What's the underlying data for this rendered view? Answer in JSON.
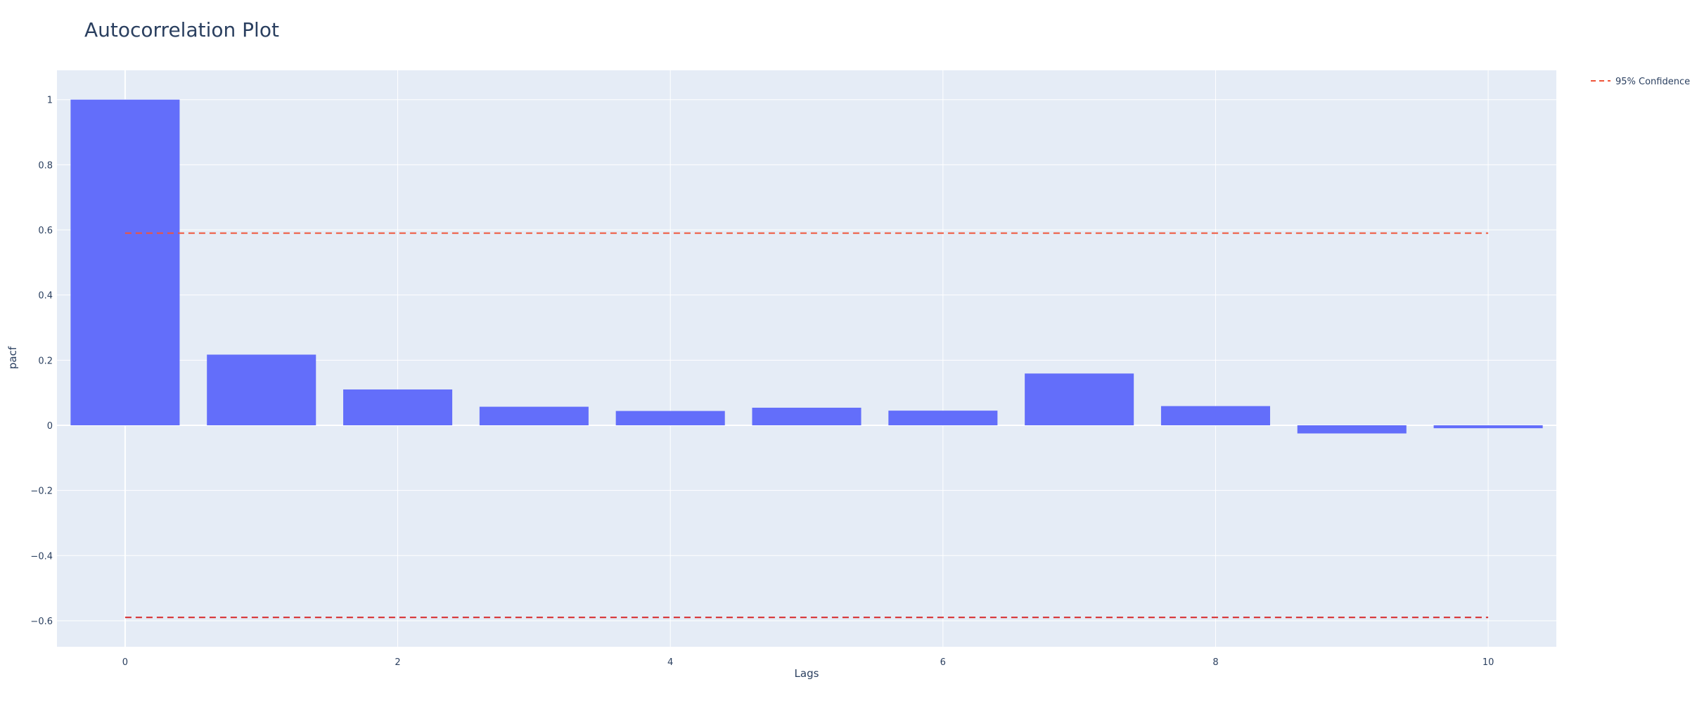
{
  "chart_data": {
    "type": "bar",
    "title": "Autocorrelation Plot",
    "xlabel": "Lags",
    "ylabel": "pacf",
    "x": [
      0,
      1,
      2,
      3,
      4,
      5,
      6,
      7,
      8,
      9,
      10
    ],
    "values": [
      1.0,
      0.217,
      0.11,
      0.057,
      0.044,
      0.054,
      0.045,
      0.159,
      0.059,
      -0.025,
      -0.009
    ],
    "xlim": [
      -0.5,
      10.5
    ],
    "ylim": [
      -0.68,
      1.09
    ],
    "xticks": [
      0,
      2,
      4,
      6,
      8,
      10
    ],
    "xtick_labels": [
      "0",
      "2",
      "4",
      "6",
      "8",
      "10"
    ],
    "yticks": [
      -0.6,
      -0.4,
      -0.2,
      0,
      0.2,
      0.4,
      0.6,
      0.8,
      1
    ],
    "ytick_labels": [
      "−0.6",
      "−0.4",
      "−0.2",
      "0",
      "0.2",
      "0.4",
      "0.6",
      "0.8",
      "1"
    ],
    "confidence": {
      "name": "95% Confidence",
      "upper": 0.59,
      "lower": -0.59,
      "x_range": [
        0,
        10
      ],
      "upper_color": "#EF553B",
      "lower_color": "#d62728"
    },
    "bar_color": "#636efa",
    "plot_bg": "#e5ecf6",
    "grid": true,
    "legend_position": "top-right"
  }
}
